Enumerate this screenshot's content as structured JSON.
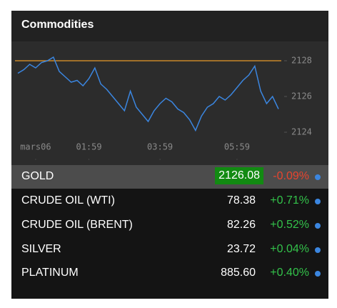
{
  "header": {
    "title": "Commodities"
  },
  "chart_data": {
    "type": "line",
    "series": [
      {
        "color": "#3b86e0",
        "values": [
          2127.3,
          2127.5,
          2127.8,
          2127.6,
          2127.9,
          2128.0,
          2128.2,
          2127.4,
          2127.1,
          2126.8,
          2126.9,
          2126.6,
          2127.0,
          2127.6,
          2126.7,
          2126.4,
          2126.0,
          2125.6,
          2125.2,
          2126.3,
          2125.4,
          2125.0,
          2124.6,
          2125.2,
          2125.6,
          2125.9,
          2125.7,
          2125.3,
          2125.1,
          2124.7,
          2124.1,
          2124.9,
          2125.4,
          2125.6,
          2126.0,
          2125.8,
          2126.1,
          2126.5,
          2126.9,
          2127.2,
          2127.7,
          2126.3,
          2125.6,
          2126.0,
          2125.3
        ]
      }
    ],
    "reference_line": {
      "value": 2128,
      "color": "#c8862a"
    },
    "xlim": [
      0,
      44
    ],
    "xticks": [
      {
        "value": 3,
        "label": "mars06"
      },
      {
        "value": 12,
        "label": "01:59"
      },
      {
        "value": 24,
        "label": "03:59"
      },
      {
        "value": 37,
        "label": "05:59"
      }
    ],
    "ylim": [
      2123.4,
      2129.0
    ],
    "yticks": [
      2124,
      2126,
      2128
    ]
  },
  "table": {
    "rows": [
      {
        "name": "GOLD",
        "price": "2126.08",
        "change": "-0.09%",
        "change_color": "#e8442e",
        "selected": true
      },
      {
        "name": "CRUDE OIL (WTI)",
        "price": "78.38",
        "change": "+0.71%",
        "change_color": "#33c24a"
      },
      {
        "name": "CRUDE OIL (BRENT)",
        "price": "82.26",
        "change": "+0.52%",
        "change_color": "#33c24a"
      },
      {
        "name": "SILVER",
        "price": "23.72",
        "change": "+0.04%",
        "change_color": "#33c24a"
      },
      {
        "name": "PLATINUM",
        "price": "885.60",
        "change": "+0.40%",
        "change_color": "#33c24a"
      }
    ]
  }
}
